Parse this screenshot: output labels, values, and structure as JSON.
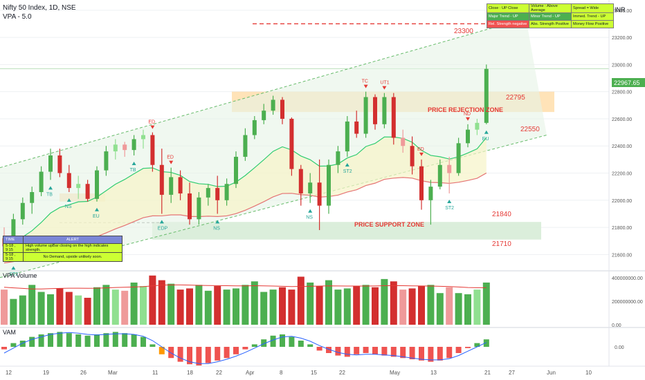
{
  "header": {
    "symbol_title": "Nifty 50 Index, 1D, NSE",
    "indicator": "VPA - 5.0",
    "currency": "INR"
  },
  "status_table": [
    [
      "Close : UP Close",
      "Volume : Above Average",
      "Spread = Wide"
    ],
    [
      "Major Trend - UP",
      "Minor Trend - UP",
      "Immed. Trend - UP"
    ],
    [
      "Rel. Strength negative",
      "Abs. Strength Positive",
      "Money Flow Positive"
    ]
  ],
  "alert_table": {
    "headers": [
      "TIME",
      "ALERT"
    ],
    "rows": [
      [
        "5-18 , 9:15",
        "High volume upBar closing on the high indicates strength."
      ],
      [
        "5-18 , 9:15",
        "No Demand, upside unlikely soon."
      ]
    ]
  },
  "annotations": {
    "target": "23300",
    "rejection_zone": "PRICE REJECTION ZONE",
    "support_zone": "PRICE SUPPORT ZONE",
    "level_22795": "22795",
    "level_22550": "22550",
    "level_21840": "21840",
    "level_21710": "21710",
    "current_price": "22967.65"
  },
  "signals": [
    {
      "label": "TB",
      "date_index": 5
    },
    {
      "label": "TB",
      "date_index": 14
    },
    {
      "label": "ED",
      "date_index": 16
    },
    {
      "label": "NS",
      "date_index": 7
    },
    {
      "label": "EU",
      "date_index": 10
    },
    {
      "label": "EDP",
      "date_index": 17
    },
    {
      "label": "ED",
      "date_index": 18
    },
    {
      "label": "NS",
      "date_index": 23
    },
    {
      "label": "TC",
      "date_index": 39
    },
    {
      "label": "UT1",
      "date_index": 41
    },
    {
      "label": "ST2",
      "date_index": 37
    },
    {
      "label": "NS",
      "date_index": 33
    },
    {
      "label": "ED",
      "date_index": 45
    },
    {
      "label": "ND",
      "date_index": 50
    },
    {
      "label": "EU",
      "date_index": 52
    },
    {
      "label": "ST2",
      "date_index": 48
    },
    {
      "label": "ST2",
      "date_index": 1
    }
  ],
  "colors": {
    "up": "#4caf50",
    "up_light": "#90e090",
    "down": "#d32f2f",
    "down_light": "#ef9a9a",
    "zone_orange": "#ffd9a0",
    "zone_green": "#d7ecd7",
    "accent_red": "#d32f2f",
    "price_label_bg": "#4caf50",
    "status_yellow": "#ccff33",
    "status_red": "#f05050"
  },
  "panels": {
    "volume_title": "VPA Volume",
    "vam_title": "VAM"
  },
  "chart_data": {
    "type": "candlestick",
    "x_ticks": [
      "12",
      "19",
      "26",
      "Mar",
      "11",
      "18",
      "22",
      "Apr",
      "8",
      "15",
      "22",
      "May",
      "13",
      "21",
      "27",
      "Jun",
      "10"
    ],
    "price_axis": [
      "23400.00",
      "23200.00",
      "23000.00",
      "22800.00",
      "22600.00",
      "22400.00",
      "22200.00",
      "22000.00",
      "21800.00",
      "21600.00"
    ],
    "price_range": [
      21500,
      23450
    ],
    "volume_axis": [
      "400000000.00",
      "200000000.00",
      "0.00"
    ],
    "volume_range": [
      0,
      460000000
    ],
    "vam_axis": [
      "0.00"
    ],
    "candles": [
      [
        21720,
        21800,
        21620,
        21660
      ],
      [
        21660,
        21900,
        21560,
        21860
      ],
      [
        21860,
        22020,
        21820,
        21980
      ],
      [
        21980,
        22100,
        21900,
        22060
      ],
      [
        22060,
        22250,
        22030,
        22210
      ],
      [
        22210,
        22380,
        22150,
        22330
      ],
      [
        22330,
        22380,
        22170,
        22200
      ],
      [
        22200,
        22260,
        22060,
        22090
      ],
      [
        22090,
        22180,
        22010,
        22120
      ],
      [
        22120,
        22150,
        21990,
        22010
      ],
      [
        22010,
        22250,
        21990,
        22220
      ],
      [
        22220,
        22400,
        22180,
        22360
      ],
      [
        22360,
        22450,
        22300,
        22410
      ],
      [
        22410,
        22430,
        22320,
        22370
      ],
      [
        22370,
        22480,
        22330,
        22450
      ],
      [
        22450,
        22520,
        22380,
        22480
      ],
      [
        22480,
        22500,
        22210,
        22260
      ],
      [
        22260,
        22380,
        21900,
        22040
      ],
      [
        22040,
        22240,
        21980,
        22170
      ],
      [
        22170,
        22220,
        22000,
        22050
      ],
      [
        22050,
        22130,
        21820,
        21860
      ],
      [
        21860,
        22060,
        21820,
        22020
      ],
      [
        22020,
        22120,
        21960,
        22090
      ],
      [
        22090,
        22180,
        21900,
        22000
      ],
      [
        22000,
        22160,
        21960,
        22120
      ],
      [
        22120,
        22360,
        22090,
        22320
      ],
      [
        22320,
        22530,
        22290,
        22480
      ],
      [
        22480,
        22620,
        22450,
        22590
      ],
      [
        22590,
        22710,
        22560,
        22660
      ],
      [
        22660,
        22770,
        22630,
        22740
      ],
      [
        22740,
        22760,
        22560,
        22600
      ],
      [
        22600,
        22610,
        22180,
        22230
      ],
      [
        22230,
        22260,
        21960,
        22050
      ],
      [
        22050,
        22200,
        21980,
        22130
      ],
      [
        22130,
        22300,
        21780,
        21960
      ],
      [
        21960,
        22300,
        21900,
        22260
      ],
      [
        22260,
        22400,
        22200,
        22360
      ],
      [
        22360,
        22620,
        22320,
        22580
      ],
      [
        22580,
        22660,
        22460,
        22490
      ],
      [
        22490,
        22800,
        22460,
        22760
      ],
      [
        22760,
        22780,
        22520,
        22560
      ],
      [
        22560,
        22790,
        22530,
        22760
      ],
      [
        22760,
        22790,
        22410,
        22460
      ],
      [
        22460,
        22520,
        22350,
        22400
      ],
      [
        22400,
        22470,
        22190,
        22250
      ],
      [
        22250,
        22300,
        21930,
        22000
      ],
      [
        22000,
        22150,
        21820,
        22100
      ],
      [
        22100,
        22300,
        22080,
        22260
      ],
      [
        22260,
        22320,
        22050,
        22200
      ],
      [
        22200,
        22460,
        22180,
        22420
      ],
      [
        22420,
        22560,
        22390,
        22520
      ],
      [
        22520,
        22600,
        22480,
        22570
      ],
      [
        22570,
        23000,
        22560,
        22968
      ]
    ],
    "volumes": [
      300,
      220,
      250,
      340,
      280,
      260,
      310,
      280,
      250,
      230,
      320,
      340,
      300,
      290,
      360,
      330,
      420,
      380,
      350,
      300,
      310,
      340,
      290,
      330,
      300,
      310,
      340,
      370,
      280,
      300,
      320,
      300,
      410,
      360,
      330,
      380,
      300,
      310,
      330,
      340,
      320,
      390,
      370,
      300,
      310,
      330,
      340,
      270,
      320,
      270,
      260,
      300,
      360
    ],
    "volume_ma": [
      320,
      315,
      310,
      305,
      305,
      308,
      310,
      312,
      312,
      311,
      312,
      315,
      318,
      320,
      322,
      325,
      332,
      338,
      340,
      340,
      338,
      336,
      335,
      334,
      333,
      332,
      332,
      333,
      332,
      330,
      328,
      326,
      327,
      328,
      330,
      332,
      331,
      330,
      330,
      330,
      331,
      333,
      334,
      333,
      332,
      331,
      330,
      328,
      326,
      322,
      318,
      316,
      316
    ],
    "vam": [
      -0.2,
      0.3,
      0.5,
      0.8,
      1.0,
      1.1,
      1.2,
      1.1,
      1.0,
      0.9,
      1.0,
      1.1,
      1.2,
      1.1,
      1.0,
      0.8,
      0.2,
      -0.6,
      -0.9,
      -1.2,
      -1.4,
      -1.5,
      -1.3,
      -1.1,
      -0.9,
      -0.6,
      -0.2,
      0.2,
      0.6,
      0.9,
      1.0,
      0.8,
      0.5,
      0.2,
      -0.3,
      -0.5,
      -0.7,
      -0.8,
      -0.6,
      -0.5,
      -0.6,
      -0.7,
      -0.8,
      -0.9,
      -1.0,
      -1.1,
      -1.2,
      -1.1,
      -0.9,
      -0.5,
      -0.1,
      0.3,
      0.6
    ],
    "vam_signal": [
      -0.5,
      -0.1,
      0.3,
      0.6,
      0.8,
      1.0,
      1.1,
      1.15,
      1.1,
      1.0,
      0.95,
      1.0,
      1.05,
      1.05,
      1.0,
      0.85,
      0.5,
      0.0,
      -0.5,
      -0.9,
      -1.2,
      -1.35,
      -1.35,
      -1.2,
      -1.0,
      -0.75,
      -0.45,
      -0.1,
      0.25,
      0.55,
      0.8,
      0.85,
      0.7,
      0.45,
      0.1,
      -0.2,
      -0.45,
      -0.6,
      -0.65,
      -0.6,
      -0.6,
      -0.65,
      -0.7,
      -0.8,
      -0.9,
      -1.0,
      -1.05,
      -1.05,
      -0.95,
      -0.7,
      -0.35,
      0.0,
      0.35
    ]
  }
}
